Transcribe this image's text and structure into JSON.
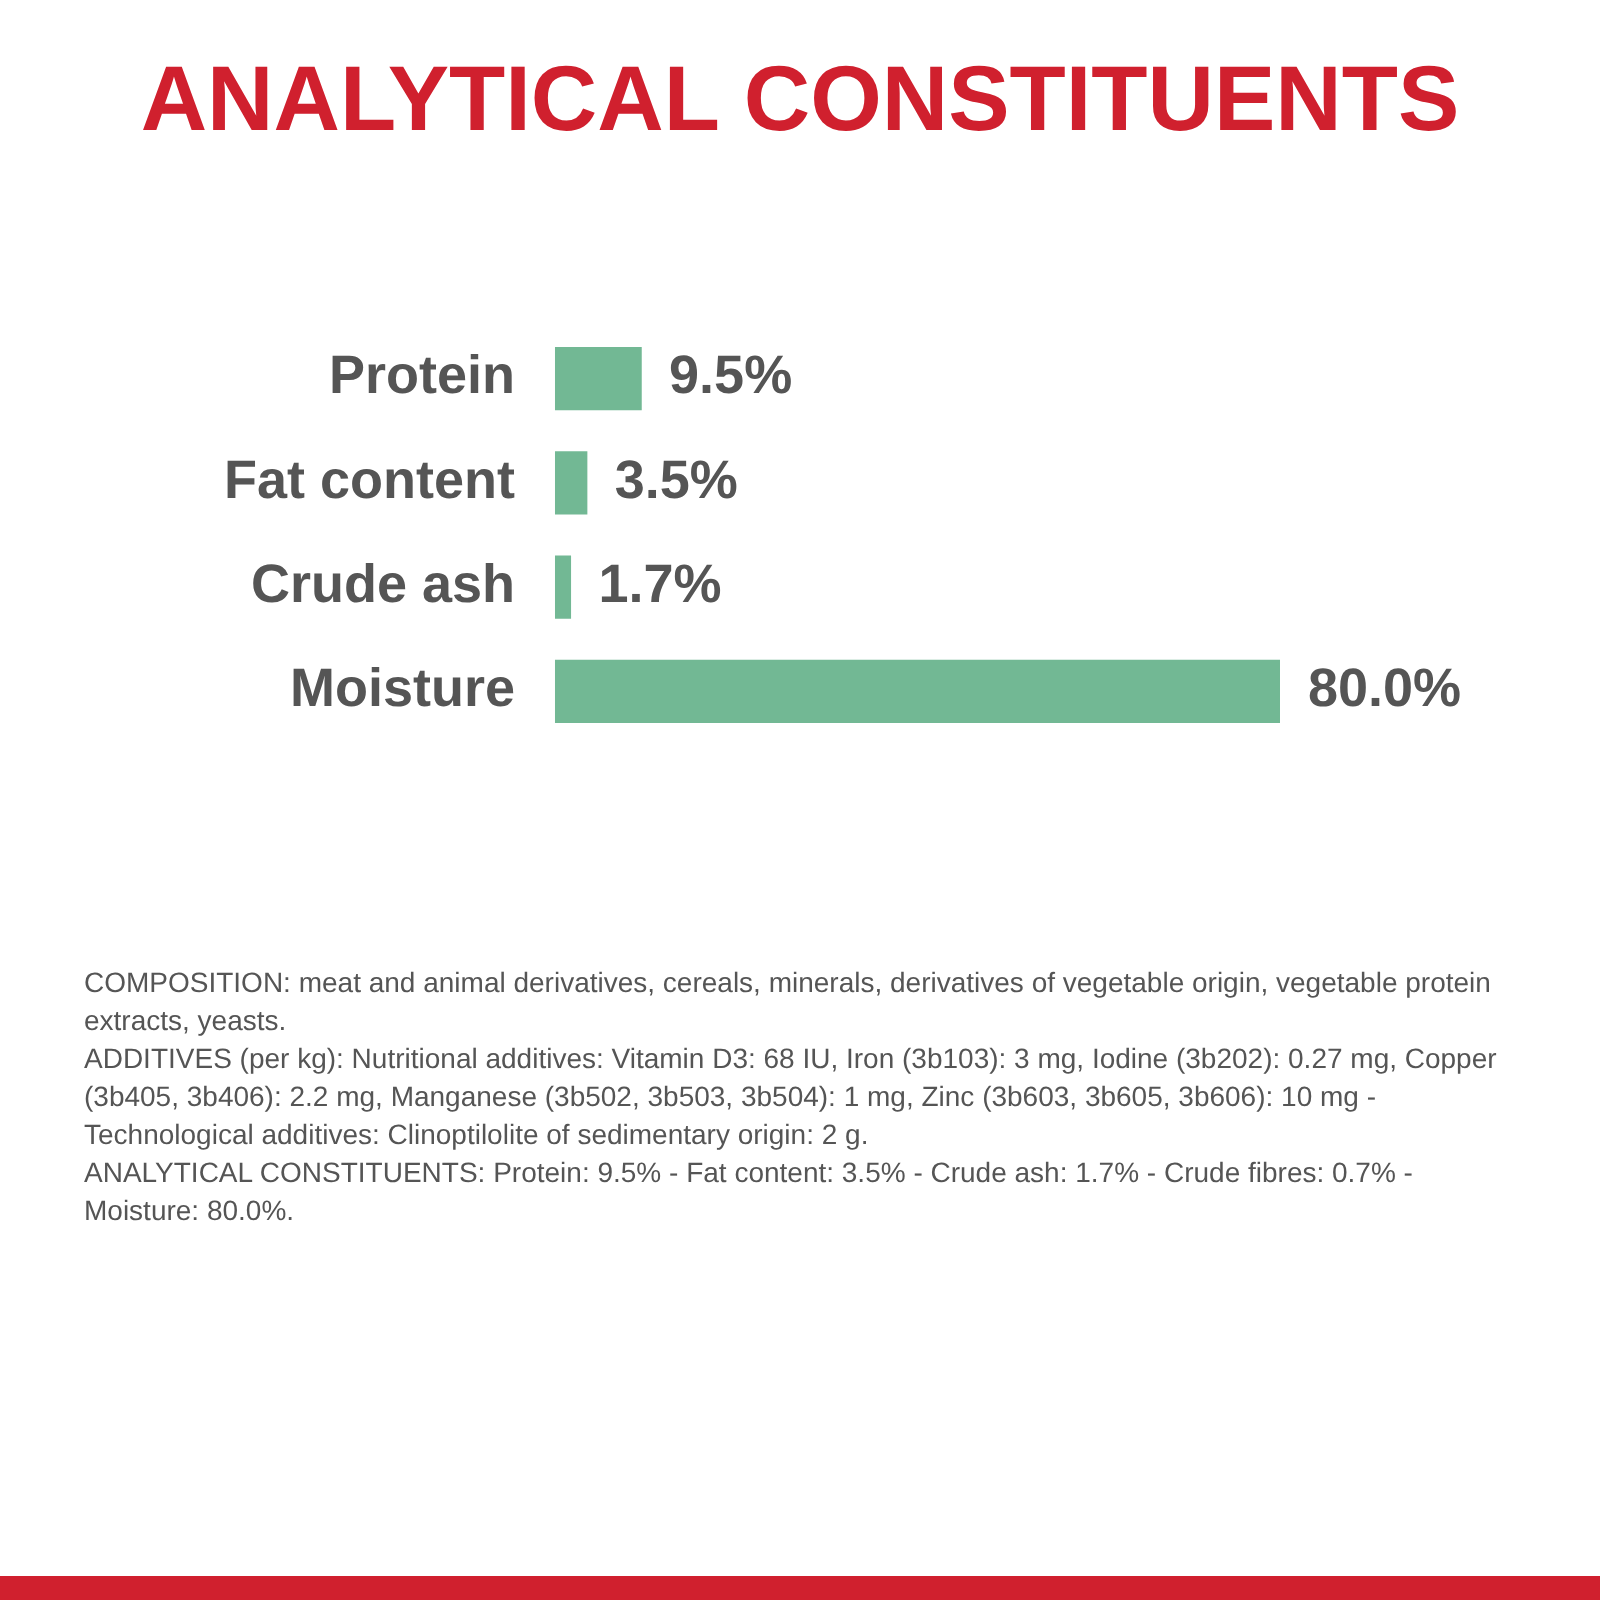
{
  "chart_data": {
    "type": "bar",
    "orientation": "horizontal",
    "title": "ANALYTICAL CONSTITUENTS",
    "categories": [
      "Protein",
      "Fat content",
      "Crude ash",
      "Moisture"
    ],
    "values": [
      9.5,
      3.5,
      1.7,
      80.0
    ],
    "value_labels": [
      "9.5%",
      "3.5%",
      "1.7%",
      "80.0%"
    ],
    "color": "#72b894",
    "tick_labels": "y",
    "legend": false,
    "annotations": [
      "COMPOSITION: meat and animal derivatives, cereals, minerals, derivatives of vegetable origin, vegetable protein extracts, yeasts.",
      "ADDITIVES (per kg): Nutritional additives: Vitamin D3: 68 IU, Iron (3b103): 3 mg, Iodine (3b202): 0.27 mg, Copper (3b405, 3b406): 2.2 mg, Manganese (3b502, 3b503, 3b504): 1 mg, Zinc (3b603, 3b605, 3b606): 10 mg - Technological additives: Clinoptilolite of sedimentary origin: 2 g.",
      "ANALYTICAL CONSTITUENTS: Protein: 9.5% - Fat content: 3.5% - Crude ash: 1.7% - Crude fibres: 0.7% - Moisture: 80.0%."
    ]
  }
}
